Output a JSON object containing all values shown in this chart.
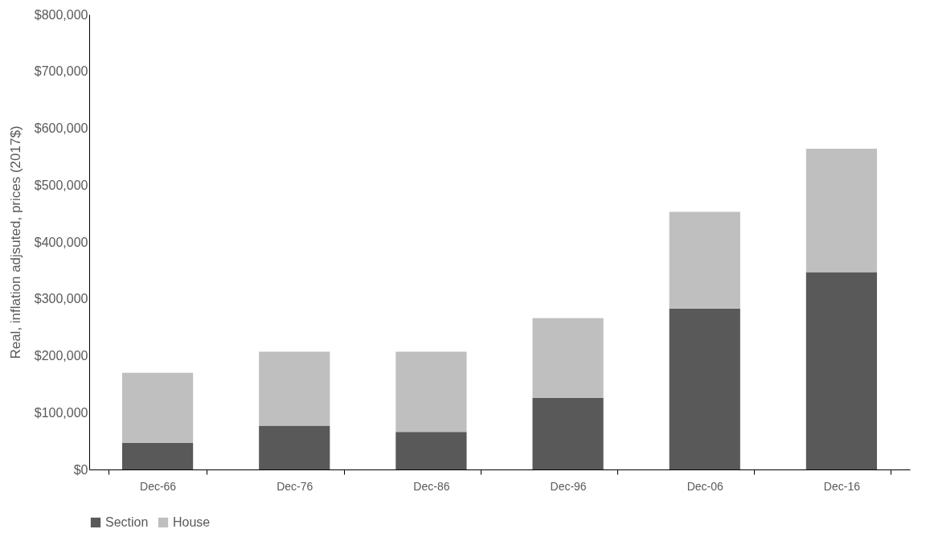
{
  "chart_data": {
    "type": "bar",
    "ylabel": "Real, inflation adjsuted, prices (2017$)",
    "categories": [
      "Dec-66",
      "Dec-76",
      "Dec-86",
      "Dec-96",
      "Dec-06",
      "Dec-16"
    ],
    "stacked": true,
    "series": [
      {
        "name": "Section",
        "color": "#595959",
        "values": [
          47000,
          77000,
          66000,
          126000,
          283000,
          347000
        ]
      },
      {
        "name": "House",
        "color": "#bfbfbf",
        "values": [
          123000,
          130000,
          141000,
          140000,
          170000,
          217000
        ]
      }
    ],
    "ylim": [
      0,
      800000
    ],
    "yticks": [
      {
        "value": 0,
        "label": "$0"
      },
      {
        "value": 100000,
        "label": "$100,000"
      },
      {
        "value": 200000,
        "label": "$200,000"
      },
      {
        "value": 300000,
        "label": "$300,000"
      },
      {
        "value": 400000,
        "label": "$400,000"
      },
      {
        "value": 500000,
        "label": "$500,000"
      },
      {
        "value": 600000,
        "label": "$600,000"
      },
      {
        "value": 700000,
        "label": "$700,000"
      },
      {
        "value": 800000,
        "label": "$800,000"
      }
    ],
    "grid": false,
    "legend": "bottom"
  }
}
